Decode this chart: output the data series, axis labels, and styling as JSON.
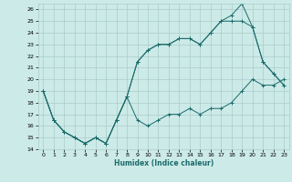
{
  "title": "",
  "xlabel": "Humidex (Indice chaleur)",
  "background_color": "#cceae7",
  "grid_color": "#aacccc",
  "line_color": "#1a6b6b",
  "xlim": [
    -0.5,
    23.5
  ],
  "ylim": [
    14,
    26.5
  ],
  "xticks": [
    0,
    1,
    2,
    3,
    4,
    5,
    6,
    7,
    8,
    9,
    10,
    11,
    12,
    13,
    14,
    15,
    16,
    17,
    18,
    19,
    20,
    21,
    22,
    23
  ],
  "yticks": [
    14,
    15,
    16,
    17,
    18,
    19,
    20,
    21,
    22,
    23,
    24,
    25,
    26
  ],
  "line1_x": [
    0,
    1,
    2,
    3,
    4,
    5,
    6,
    7,
    8,
    9,
    10,
    11,
    12,
    13,
    14,
    15,
    16,
    17,
    18,
    19,
    20,
    21,
    22,
    23
  ],
  "line1_y": [
    19,
    16.5,
    15.5,
    15,
    14.5,
    15,
    14.5,
    16.5,
    18.5,
    16.5,
    16,
    16.5,
    17,
    17,
    17.5,
    17,
    17.5,
    17.5,
    18,
    19,
    20,
    19.5,
    19.5,
    20
  ],
  "line2_x": [
    0,
    1,
    2,
    3,
    4,
    5,
    6,
    7,
    8,
    9,
    10,
    11,
    12,
    13,
    14,
    15,
    16,
    17,
    18,
    19,
    20,
    21,
    22,
    23
  ],
  "line2_y": [
    19,
    16.5,
    15.5,
    15,
    14.5,
    15,
    14.5,
    16.5,
    18.5,
    21.5,
    22.5,
    23,
    23,
    23.5,
    23.5,
    23,
    24,
    25,
    25.5,
    26.5,
    24.5,
    21.5,
    20.5,
    19.5
  ],
  "line3_x": [
    0,
    1,
    2,
    3,
    4,
    5,
    6,
    7,
    8,
    9,
    10,
    11,
    12,
    13,
    14,
    15,
    16,
    17,
    18,
    19,
    20,
    21,
    22,
    23
  ],
  "line3_y": [
    19,
    16.5,
    15.5,
    15,
    14.5,
    15,
    14.5,
    16.5,
    18.5,
    21.5,
    22.5,
    23,
    23,
    23.5,
    23.5,
    23,
    24,
    25,
    25,
    25,
    24.5,
    21.5,
    20.5,
    19.5
  ]
}
